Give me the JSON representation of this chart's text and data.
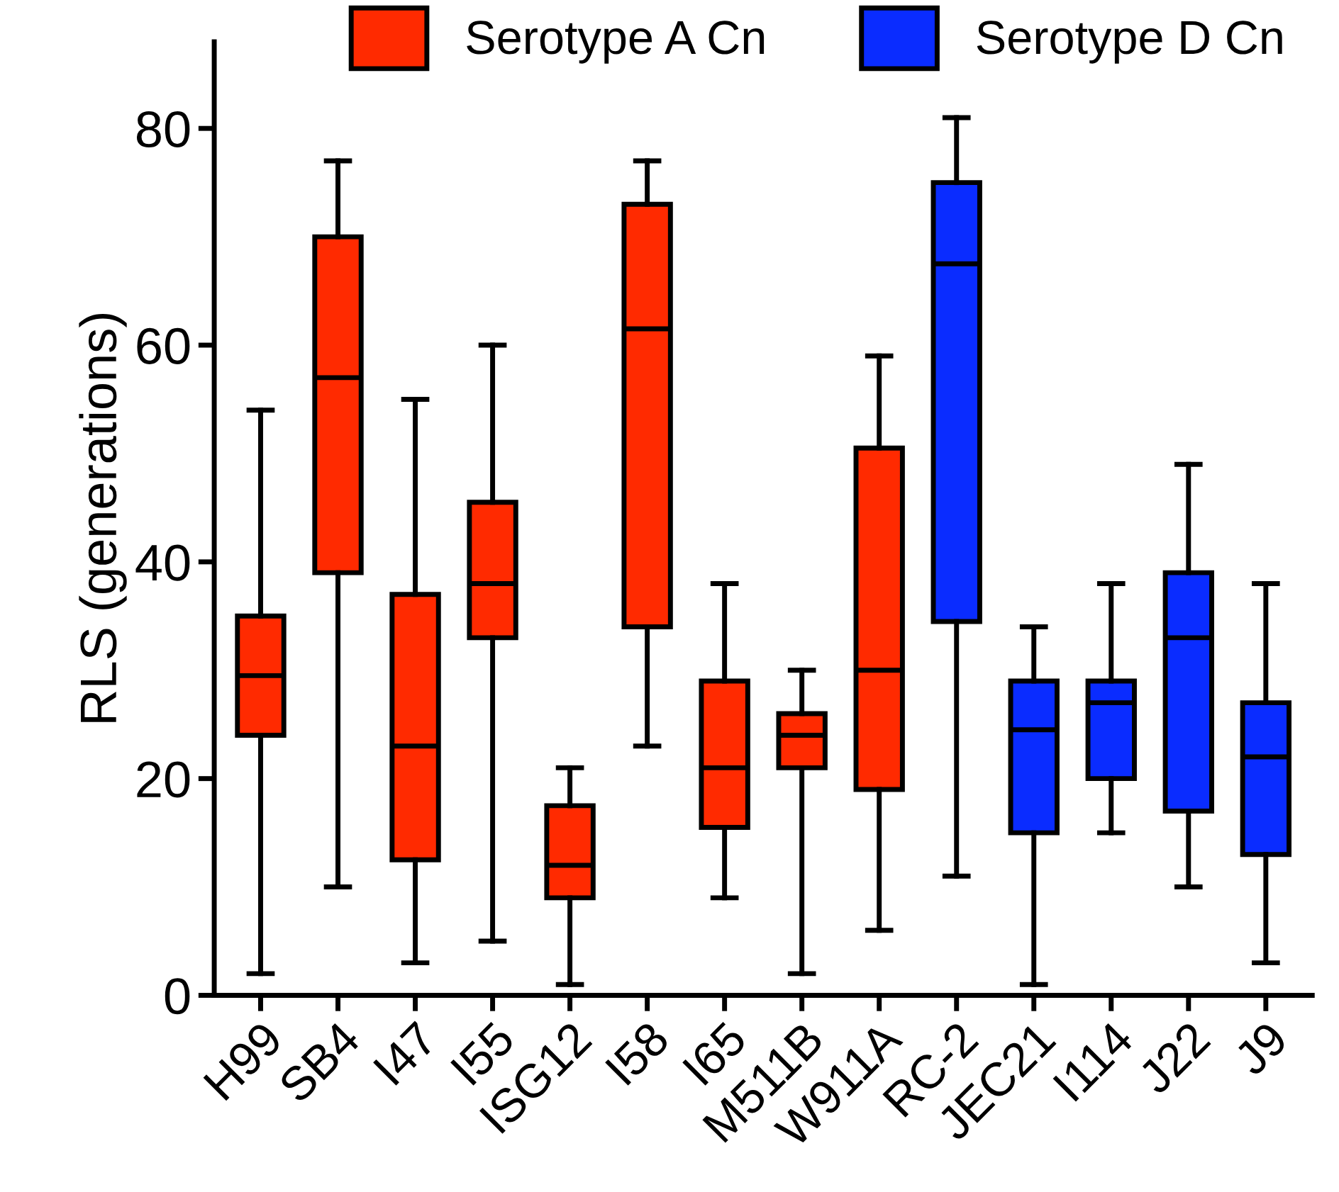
{
  "chart_data": {
    "type": "box",
    "ylabel": "RLS (generations)",
    "categories": [
      "H99",
      "SB4",
      "I47",
      "I55",
      "ISG12",
      "I58",
      "I65",
      "M511B",
      "W911A",
      "RC-2",
      "JEC21",
      "I114",
      "J22",
      "J9"
    ],
    "series": [
      {
        "name": "Serotype A Cn",
        "color": "#ff2a00",
        "boxes": [
          {
            "low": 2,
            "q1": 24,
            "median": 29.5,
            "q3": 35,
            "high": 54
          },
          {
            "low": 10,
            "q1": 39,
            "median": 57,
            "q3": 70,
            "high": 77
          },
          {
            "low": 3,
            "q1": 12.5,
            "median": 23,
            "q3": 37,
            "high": 55
          },
          {
            "low": 5,
            "q1": 33,
            "median": 38,
            "q3": 45.5,
            "high": 60
          },
          {
            "low": 1,
            "q1": 9,
            "median": 12,
            "q3": 17.5,
            "high": 21
          },
          {
            "low": 23,
            "q1": 34,
            "median": 61.5,
            "q3": 73,
            "high": 77
          },
          {
            "low": 9,
            "q1": 15.5,
            "median": 21,
            "q3": 29,
            "high": 38
          },
          {
            "low": 2,
            "q1": 21,
            "median": 24,
            "q3": 26,
            "high": 30
          },
          {
            "low": 6,
            "q1": 19,
            "median": 30,
            "q3": 50.5,
            "high": 59
          },
          null,
          null,
          null,
          null,
          null
        ]
      },
      {
        "name": "Serotype D Cn",
        "color": "#0a2cff",
        "boxes": [
          null,
          null,
          null,
          null,
          null,
          null,
          null,
          null,
          null,
          {
            "low": 11,
            "q1": 34.5,
            "median": 67.5,
            "q3": 75,
            "high": 81
          },
          {
            "low": 1,
            "q1": 15,
            "median": 24.5,
            "q3": 29,
            "high": 34
          },
          {
            "low": 15,
            "q1": 20,
            "median": 27,
            "q3": 29,
            "high": 38
          },
          {
            "low": 10,
            "q1": 17,
            "median": 33,
            "q3": 39,
            "high": 49
          },
          {
            "low": 3,
            "q1": 13,
            "median": 22,
            "q3": 27,
            "high": 38
          }
        ]
      }
    ],
    "ylim": [
      0,
      88
    ],
    "yticks": [
      0,
      20,
      40,
      60,
      80
    ],
    "grid": false,
    "legend": "top"
  }
}
